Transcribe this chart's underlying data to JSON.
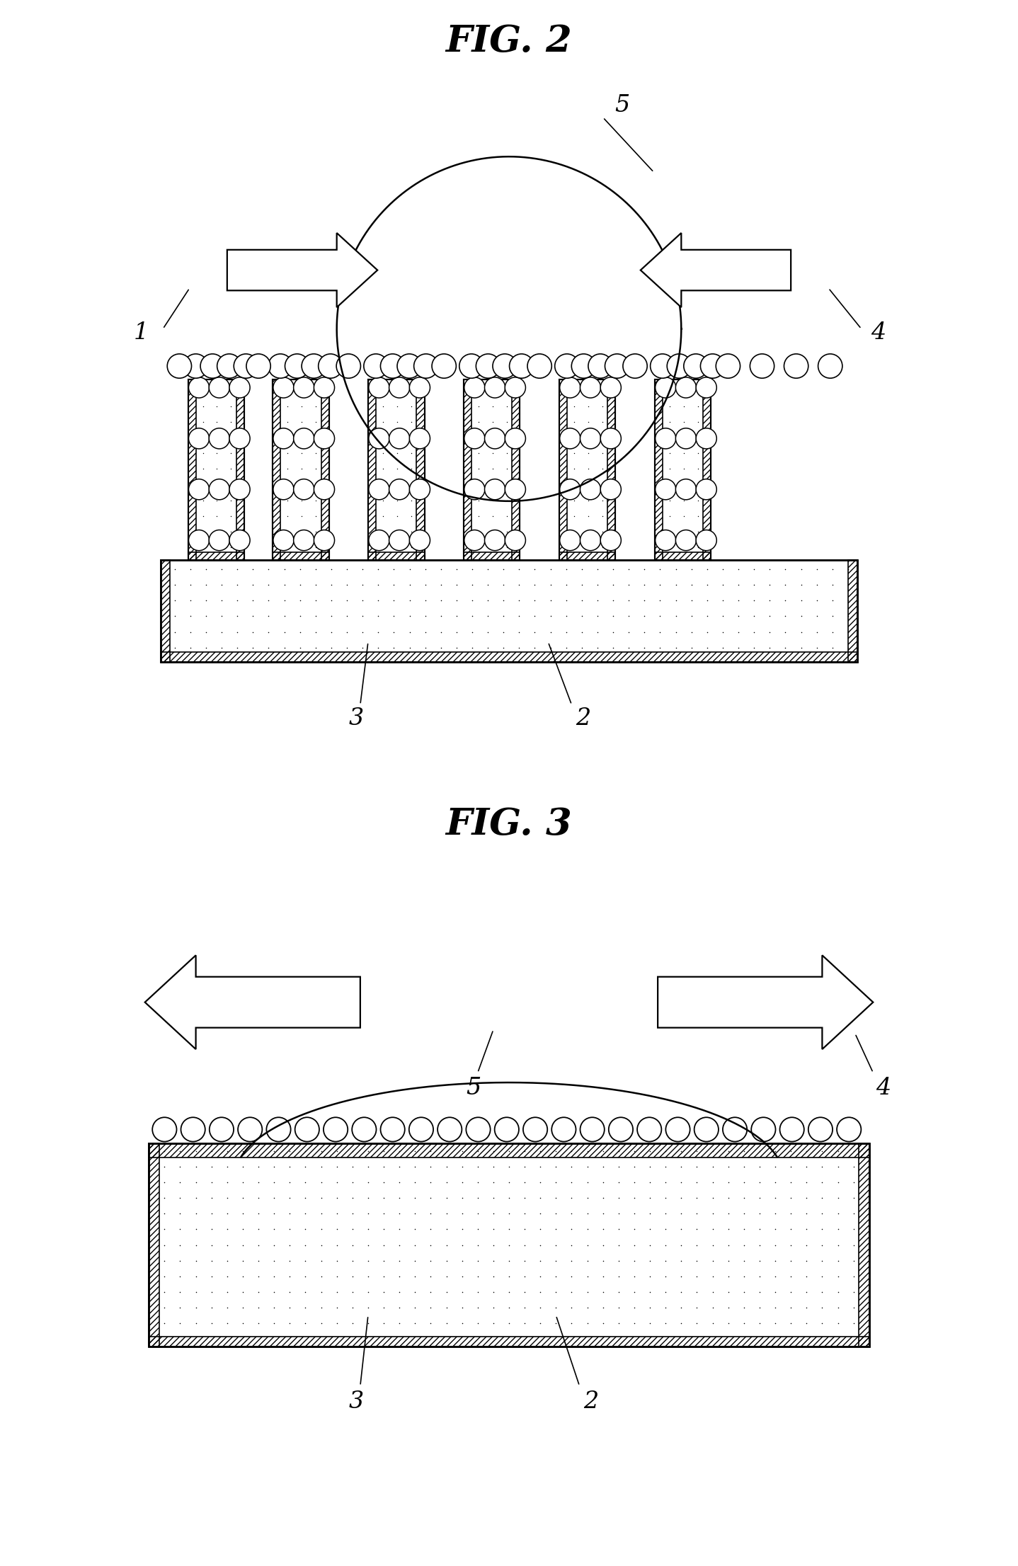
{
  "fig_title1": "FIG. 2",
  "fig_title2": "FIG. 3",
  "background_color": "#ffffff",
  "dot_color": "#000000",
  "line_color": "#000000",
  "hatch_pattern": "////",
  "stipple_color": "#000000"
}
